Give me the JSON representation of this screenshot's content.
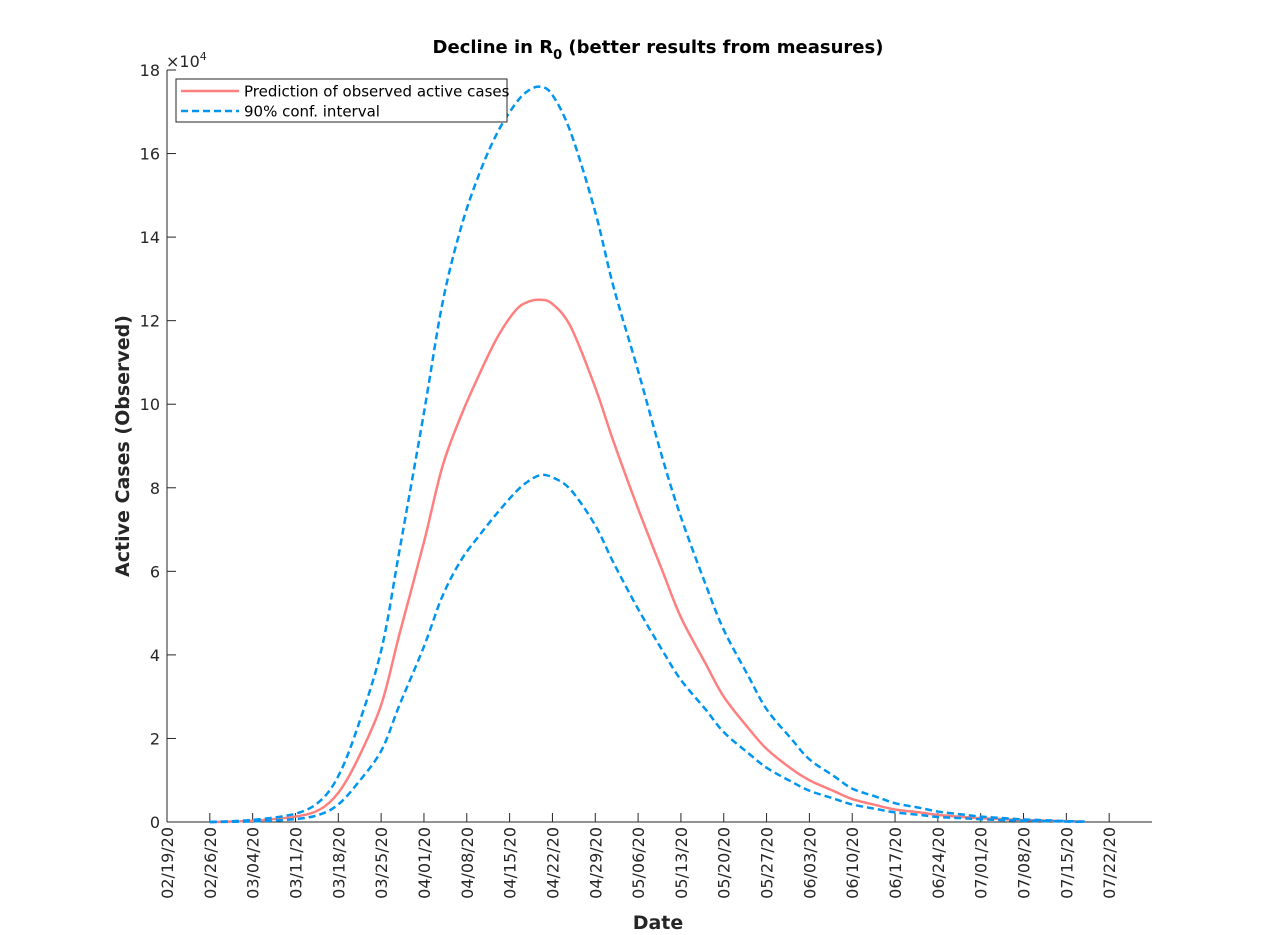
{
  "chart_data": {
    "type": "line",
    "title_main": "Decline in R",
    "title_sub": "0",
    "title_rest": " (better results from measures)",
    "xlabel": "Date",
    "ylabel": "Active Cases (Observed)",
    "y_multiplier_base": "×10",
    "y_multiplier_exp": "4",
    "ylim": [
      0,
      180000
    ],
    "yticks": [
      0,
      20000,
      40000,
      60000,
      80000,
      100000,
      120000,
      140000,
      160000,
      180000
    ],
    "ytick_labels": [
      "0",
      "2",
      "4",
      "6",
      "8",
      "10",
      "12",
      "14",
      "16",
      "18"
    ],
    "xlim": [
      "2020-02-19",
      "2020-07-29"
    ],
    "xticks": [
      "2020-02-19",
      "2020-02-26",
      "2020-03-04",
      "2020-03-11",
      "2020-03-18",
      "2020-03-25",
      "2020-04-01",
      "2020-04-08",
      "2020-04-15",
      "2020-04-22",
      "2020-04-29",
      "2020-05-06",
      "2020-05-13",
      "2020-05-20",
      "2020-05-27",
      "2020-06-03",
      "2020-06-10",
      "2020-06-17",
      "2020-06-24",
      "2020-07-01",
      "2020-07-08",
      "2020-07-15",
      "2020-07-22"
    ],
    "xtick_labels": [
      "02/19/20",
      "02/26/20",
      "03/04/20",
      "03/11/20",
      "03/18/20",
      "03/25/20",
      "04/01/20",
      "04/08/20",
      "04/15/20",
      "04/22/20",
      "04/29/20",
      "05/06/20",
      "05/13/20",
      "05/20/20",
      "05/27/20",
      "06/03/20",
      "06/10/20",
      "06/17/20",
      "06/24/20",
      "07/01/20",
      "07/08/20",
      "07/15/20",
      "07/22/20"
    ],
    "grid": false,
    "legend_position": "top-left",
    "series": [
      {
        "name": "Prediction of observed active cases",
        "color": "#FF7F7F",
        "dash": "solid",
        "x": [
          "2020-02-26",
          "2020-03-04",
          "2020-03-11",
          "2020-03-15",
          "2020-03-18",
          "2020-03-21",
          "2020-03-25",
          "2020-03-28",
          "2020-04-01",
          "2020-04-04",
          "2020-04-07",
          "2020-04-10",
          "2020-04-13",
          "2020-04-16",
          "2020-04-18",
          "2020-04-20",
          "2020-04-22",
          "2020-04-25",
          "2020-04-29",
          "2020-05-02",
          "2020-05-06",
          "2020-05-10",
          "2020-05-13",
          "2020-05-17",
          "2020-05-20",
          "2020-05-24",
          "2020-05-27",
          "2020-05-31",
          "2020-06-03",
          "2020-06-07",
          "2020-06-10",
          "2020-06-14",
          "2020-06-17",
          "2020-06-21",
          "2020-06-24",
          "2020-06-28",
          "2020-07-01",
          "2020-07-05",
          "2020-07-08",
          "2020-07-12",
          "2020-07-15",
          "2020-07-18"
        ],
        "y": [
          0,
          300,
          1300,
          3000,
          7000,
          14500,
          28000,
          45000,
          67000,
          85000,
          97000,
          107000,
          116000,
          122500,
          124500,
          125000,
          124000,
          118500,
          104000,
          91000,
          75000,
          60000,
          49000,
          38000,
          30000,
          22500,
          17500,
          12800,
          10000,
          7400,
          5500,
          4000,
          3000,
          2300,
          1700,
          1200,
          900,
          650,
          450,
          320,
          200,
          100
        ]
      },
      {
        "name": "90% conf. interval",
        "color": "#0096F0",
        "dash": "dashed",
        "x": [
          "2020-02-26",
          "2020-03-04",
          "2020-03-11",
          "2020-03-15",
          "2020-03-18",
          "2020-03-21",
          "2020-03-25",
          "2020-03-28",
          "2020-04-01",
          "2020-04-04",
          "2020-04-07",
          "2020-04-10",
          "2020-04-13",
          "2020-04-16",
          "2020-04-18",
          "2020-04-20",
          "2020-04-22",
          "2020-04-25",
          "2020-04-29",
          "2020-05-02",
          "2020-05-06",
          "2020-05-10",
          "2020-05-13",
          "2020-05-17",
          "2020-05-20",
          "2020-05-24",
          "2020-05-27",
          "2020-05-31",
          "2020-06-03",
          "2020-06-07",
          "2020-06-10",
          "2020-06-14",
          "2020-06-17",
          "2020-06-21",
          "2020-06-24",
          "2020-06-28",
          "2020-07-01",
          "2020-07-05",
          "2020-07-08",
          "2020-07-12",
          "2020-07-15",
          "2020-07-18"
        ],
        "y": [
          0,
          500,
          2000,
          5000,
          11000,
          22000,
          41000,
          65000,
          98000,
          124000,
          142000,
          155000,
          165000,
          172000,
          175000,
          176000,
          174000,
          165000,
          146000,
          128000,
          108000,
          87000,
          73000,
          57000,
          46000,
          35000,
          27000,
          20000,
          15000,
          11000,
          8000,
          6000,
          4500,
          3400,
          2500,
          1800,
          1300,
          900,
          600,
          400,
          200,
          100
        ]
      },
      {
        "name": "",
        "color": "#0096F0",
        "dash": "dashed",
        "x": [
          "2020-02-26",
          "2020-03-04",
          "2020-03-11",
          "2020-03-15",
          "2020-03-18",
          "2020-03-21",
          "2020-03-25",
          "2020-03-28",
          "2020-04-01",
          "2020-04-04",
          "2020-04-07",
          "2020-04-10",
          "2020-04-13",
          "2020-04-16",
          "2020-04-18",
          "2020-04-20",
          "2020-04-22",
          "2020-04-25",
          "2020-04-29",
          "2020-05-02",
          "2020-05-06",
          "2020-05-10",
          "2020-05-13",
          "2020-05-17",
          "2020-05-20",
          "2020-05-24",
          "2020-05-27",
          "2020-05-31",
          "2020-06-03",
          "2020-06-07",
          "2020-06-10",
          "2020-06-14",
          "2020-06-17",
          "2020-06-21",
          "2020-06-24",
          "2020-06-28",
          "2020-07-01",
          "2020-07-05",
          "2020-07-08",
          "2020-07-12",
          "2020-07-15",
          "2020-07-18"
        ],
        "y": [
          0,
          150,
          700,
          1800,
          4200,
          9000,
          17000,
          28000,
          42000,
          54000,
          62500,
          68500,
          74000,
          79000,
          81500,
          83000,
          82500,
          79500,
          71000,
          62000,
          51000,
          41000,
          34000,
          27000,
          21500,
          16500,
          13000,
          9700,
          7500,
          5600,
          4200,
          3100,
          2300,
          1700,
          1200,
          900,
          650,
          450,
          300,
          200,
          100,
          50
        ]
      }
    ]
  }
}
